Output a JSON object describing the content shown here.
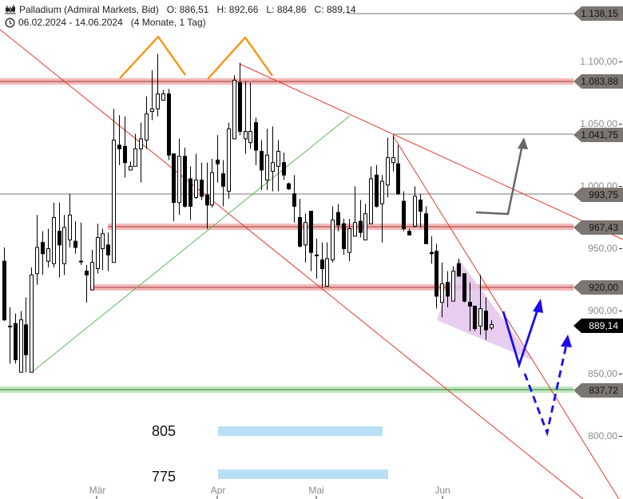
{
  "header": {
    "instrument": "Palladium (Admiral Markets, Bid)",
    "open": "O: 886,51",
    "high": "H: 892,66",
    "low": "L: 884,86",
    "close": "C: 889,14",
    "date_range": "06.02.2024 - 14.06.2024",
    "duration": "(4 Monate, 1 Tag)",
    "icons": [
      "candlestick-icon",
      "clock-icon"
    ]
  },
  "price_axis": {
    "ticks": [
      "1.100,00",
      "1.050,00",
      "1.000,00",
      "950,00",
      "900,00",
      "850,00",
      "800,00"
    ],
    "tick_values": [
      1100,
      1050,
      1000,
      950,
      900,
      850,
      800
    ]
  },
  "time_axis": {
    "months": [
      "Mär",
      "Apr",
      "Mai",
      "Jun"
    ]
  },
  "level_tags": [
    {
      "label": "1.138,15",
      "value": 1138.15
    },
    {
      "label": "1.083,88",
      "value": 1083.88
    },
    {
      "label": "1.041,75",
      "value": 1041.75
    },
    {
      "label": "993,75",
      "value": 993.75
    },
    {
      "label": "967,43",
      "value": 967.43
    },
    {
      "label": "920,00",
      "value": 920.0
    },
    {
      "label": "837,72",
      "value": 837.72
    }
  ],
  "current_price": {
    "label": "889,14",
    "value": 889.14
  },
  "targets": [
    {
      "label": "805"
    },
    {
      "label": "775"
    }
  ],
  "colors": {
    "resistance_band": "#f4b9b9",
    "support_band": "#bfe8bf",
    "trendline_red": "#e03c31",
    "trendline_green": "#5cb85c",
    "pattern_orange": "#ff8c00",
    "wedge_fill": "#e3c6ec",
    "projection_blue": "#1a0cf0",
    "projection_gray": "#666666",
    "target_bar": "#b9dff7",
    "tag_bg": "#7c7672"
  },
  "candles": [
    [
      940,
      951,
      892,
      893
    ],
    [
      888,
      903,
      858,
      888
    ],
    [
      890,
      898,
      858,
      861
    ],
    [
      851,
      900,
      851,
      893
    ],
    [
      889,
      911,
      851,
      865
    ],
    [
      851,
      935,
      851,
      929
    ],
    [
      930,
      977,
      921,
      951
    ],
    [
      955,
      964,
      929,
      946
    ],
    [
      940,
      966,
      935,
      950
    ],
    [
      938,
      987,
      935,
      975
    ],
    [
      964,
      987,
      927,
      953
    ],
    [
      938,
      977,
      929,
      967
    ],
    [
      957,
      994,
      951,
      977
    ],
    [
      956,
      972,
      946,
      951
    ],
    [
      940,
      971,
      937,
      940
    ],
    [
      932,
      937,
      907,
      929
    ],
    [
      917,
      949,
      917,
      939
    ],
    [
      934,
      970,
      930,
      959
    ],
    [
      950,
      966,
      933,
      962
    ],
    [
      953,
      963,
      932,
      945
    ],
    [
      939,
      1062,
      939,
      1037
    ],
    [
      1033,
      1057,
      1017,
      1030
    ],
    [
      1032,
      1056,
      1007,
      1019
    ],
    [
      1013,
      1020,
      1013,
      1016
    ],
    [
      1016,
      1042,
      1016,
      1030
    ],
    [
      1030,
      1051,
      1003,
      1038
    ],
    [
      1037,
      1072,
      1030,
      1058
    ],
    [
      1060,
      1093,
      1053,
      1062
    ],
    [
      1062,
      1106,
      1056,
      1074
    ],
    [
      1069,
      1077,
      1069,
      1074
    ],
    [
      1074,
      1078,
      1021,
      1025
    ],
    [
      1026,
      1026,
      972,
      987
    ],
    [
      987,
      1038,
      977,
      1024
    ],
    [
      1024,
      1031,
      983,
      984
    ],
    [
      1006,
      1016,
      973,
      984
    ],
    [
      991,
      1026,
      990,
      1005
    ],
    [
      1005,
      1019,
      989,
      992
    ],
    [
      993,
      1019,
      966,
      985
    ],
    [
      985,
      1022,
      983,
      1011
    ],
    [
      1021,
      1041,
      1003,
      1018
    ],
    [
      1010,
      1021,
      984,
      1000
    ],
    [
      996,
      1051,
      990,
      1046
    ],
    [
      1038,
      1089,
      1038,
      1085
    ],
    [
      1083,
      1099,
      1041,
      1044
    ],
    [
      1038,
      1084,
      1026,
      1044
    ],
    [
      1035,
      1083,
      1030,
      1044
    ],
    [
      1051,
      1055,
      1017,
      1029
    ],
    [
      1028,
      1037,
      997,
      1013
    ],
    [
      1005,
      1046,
      997,
      1025
    ],
    [
      1012,
      1048,
      996,
      1019
    ],
    [
      1016,
      1037,
      996,
      1028
    ],
    [
      1019,
      1027,
      1005,
      1009
    ],
    [
      1002,
      1003,
      997,
      998
    ],
    [
      994,
      1009,
      971,
      984
    ],
    [
      975,
      990,
      951,
      952
    ],
    [
      953,
      978,
      939,
      971
    ],
    [
      980,
      980,
      932,
      947
    ],
    [
      945,
      958,
      926,
      945
    ],
    [
      941,
      955,
      919,
      934
    ],
    [
      920,
      955,
      920,
      942
    ],
    [
      941,
      984,
      939,
      973
    ],
    [
      979,
      986,
      964,
      969
    ],
    [
      970,
      974,
      945,
      950
    ],
    [
      947,
      974,
      940,
      966
    ],
    [
      960,
      1000,
      960,
      971
    ],
    [
      972,
      989,
      959,
      963
    ],
    [
      957,
      986,
      957,
      978
    ],
    [
      970,
      1016,
      970,
      1006
    ],
    [
      1009,
      1017,
      983,
      984
    ],
    [
      986,
      1009,
      955,
      1004
    ],
    [
      1001,
      1039,
      991,
      1023
    ],
    [
      1019,
      1041,
      1012,
      1023
    ],
    [
      1018,
      1033,
      993,
      994
    ],
    [
      988,
      996,
      964,
      966
    ],
    [
      964,
      966,
      961,
      961
    ],
    [
      968,
      1000,
      967,
      992
    ],
    [
      989,
      994,
      967,
      980
    ],
    [
      978,
      984,
      954,
      954
    ],
    [
      947,
      960,
      938,
      946
    ],
    [
      948,
      954,
      902,
      912
    ],
    [
      907,
      939,
      895,
      922
    ],
    [
      923,
      932,
      903,
      912
    ],
    [
      908,
      936,
      908,
      932
    ],
    [
      938,
      942,
      928,
      928
    ],
    [
      930,
      930,
      907,
      908
    ],
    [
      907,
      923,
      884,
      904
    ],
    [
      904,
      904,
      884,
      886
    ],
    [
      888,
      929,
      881,
      902
    ],
    [
      900,
      911,
      877,
      885
    ],
    [
      886.51,
      892.66,
      884.86,
      889.14
    ]
  ]
}
